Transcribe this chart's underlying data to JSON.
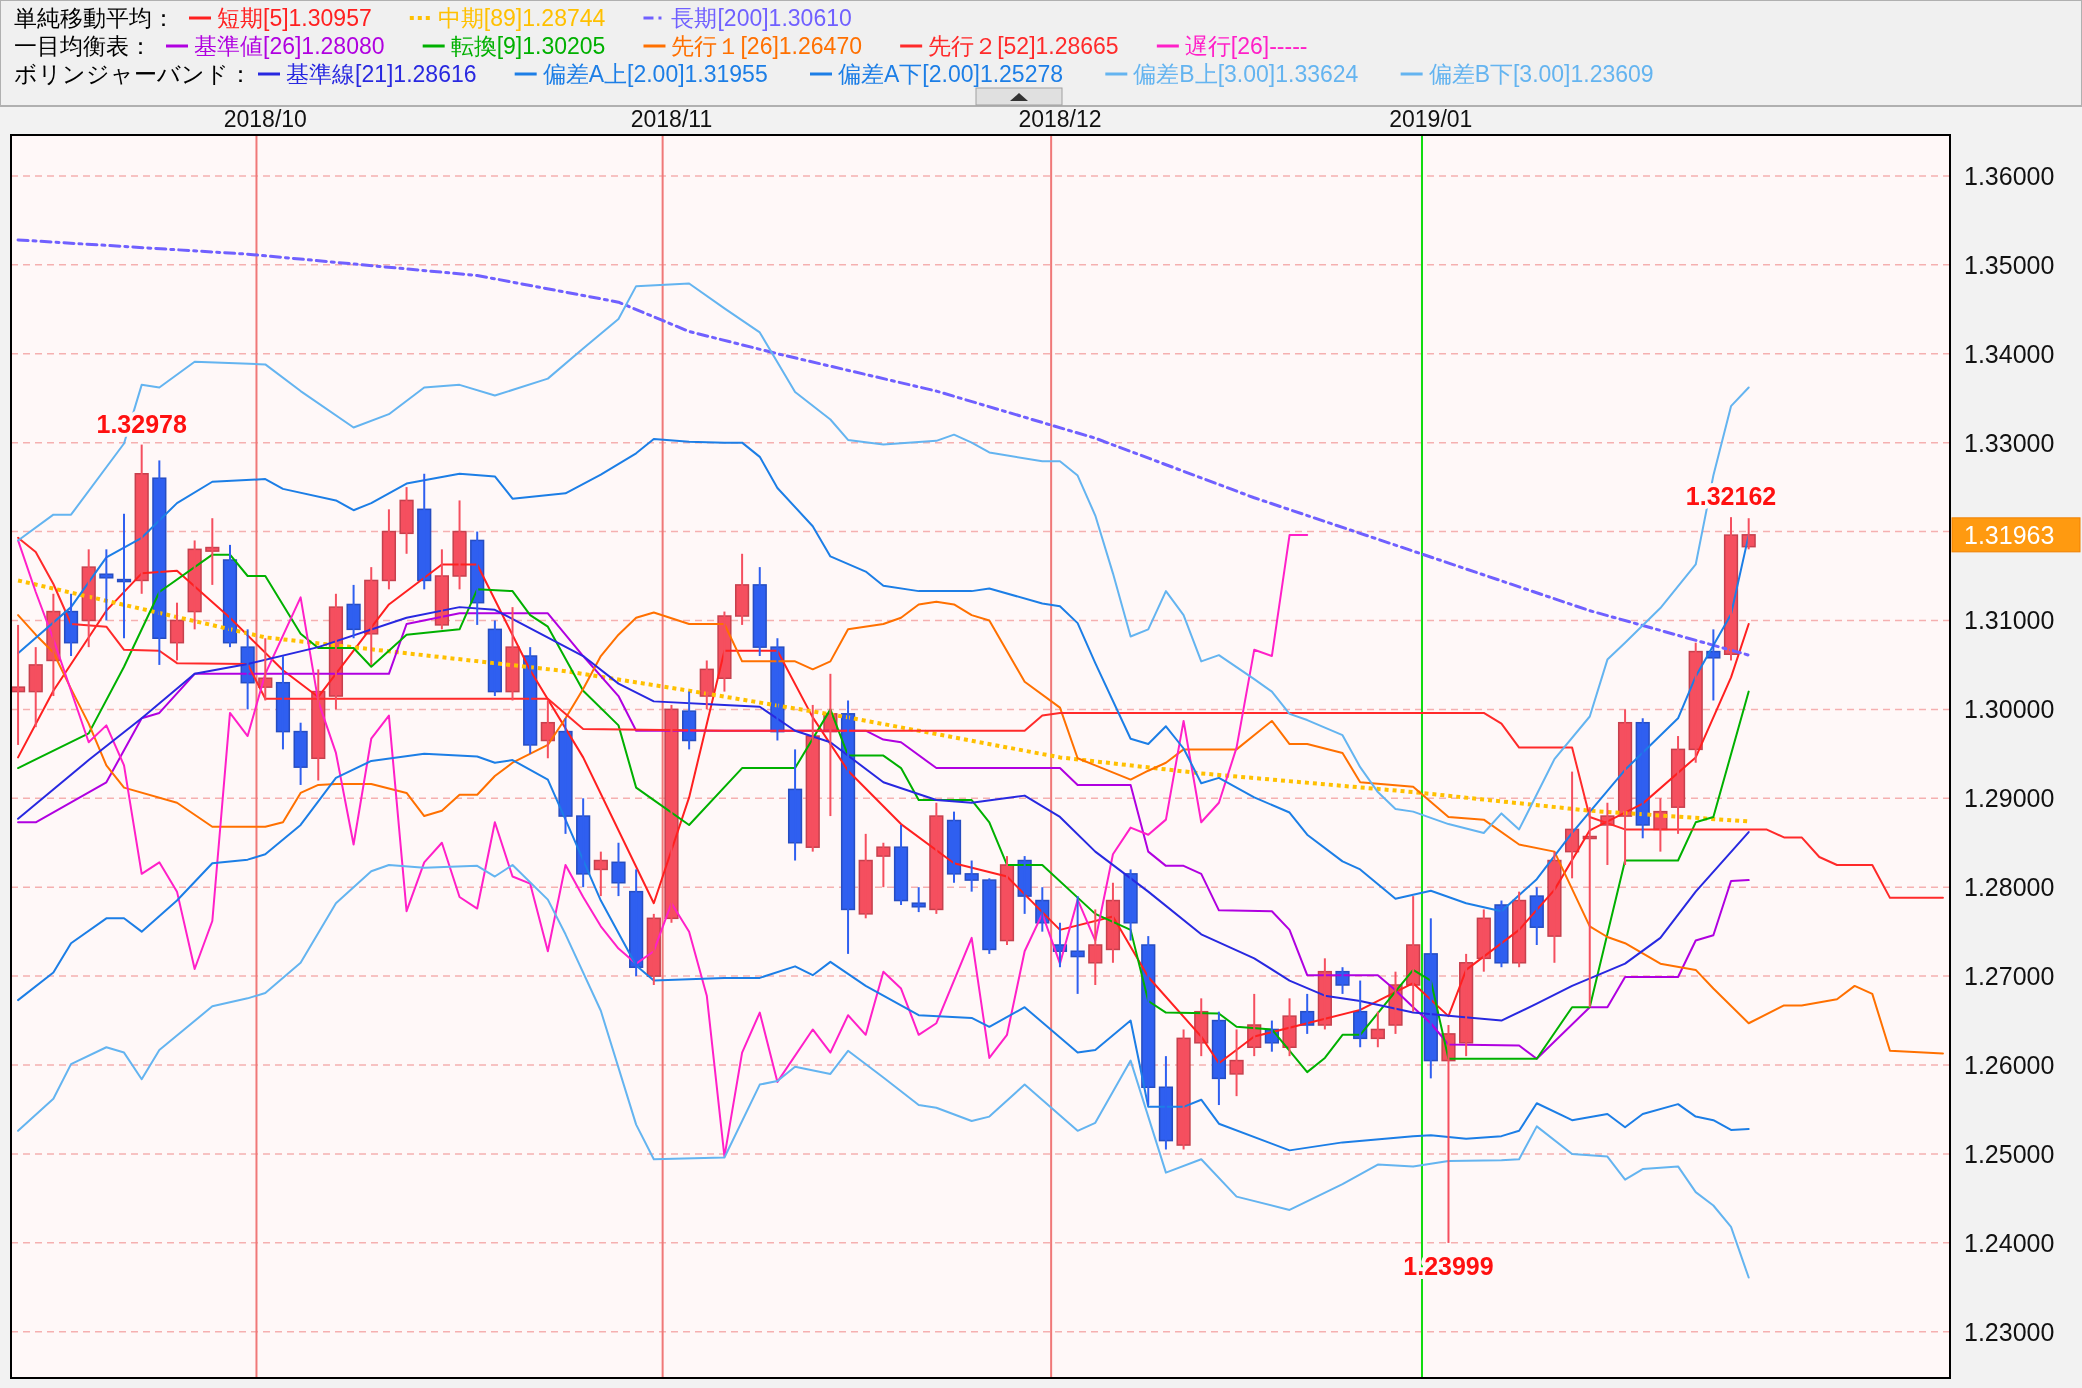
{
  "chart_data": {
    "type": "candlestick",
    "categories": [
      null,
      null,
      null,
      null,
      null,
      null,
      null,
      null,
      null,
      null,
      null,
      null,
      null,
      null,
      "2018/10",
      null,
      null,
      null,
      null,
      null,
      null,
      null,
      null,
      null,
      null,
      null,
      null,
      null,
      null,
      null,
      null,
      null,
      null,
      null,
      null,
      null,
      null,
      "2018/11",
      null,
      null,
      null,
      null,
      null,
      null,
      null,
      null,
      null,
      null,
      null,
      null,
      null,
      null,
      null,
      null,
      null,
      null,
      null,
      null,
      null,
      "2018/12",
      null,
      null,
      null,
      null,
      null,
      null,
      null,
      null,
      null,
      null,
      null,
      null,
      null,
      null,
      null,
      null,
      null,
      null,
      null,
      null,
      "2019/01",
      null,
      null,
      null,
      null,
      null,
      null,
      null,
      null,
      null,
      null,
      null,
      null,
      null,
      null,
      null,
      null,
      null,
      null,
      null,
      null,
      null,
      null,
      null,
      null,
      null,
      null,
      null,
      null,
      null
    ],
    "ohlc": [
      [
        1.302,
        1.3095,
        1.296,
        1.3025
      ],
      [
        1.302,
        1.307,
        1.298,
        1.305
      ],
      [
        1.3055,
        1.313,
        1.3015,
        1.311
      ],
      [
        1.311,
        1.313,
        1.306,
        1.3075
      ],
      [
        1.31,
        1.318,
        1.307,
        1.316
      ],
      [
        1.3152,
        1.318,
        1.31,
        1.3148
      ],
      [
        1.3146,
        1.322,
        1.308,
        1.3144
      ],
      [
        1.3145,
        1.32978,
        1.313,
        1.3265
      ],
      [
        1.326,
        1.328,
        1.305,
        1.308
      ],
      [
        1.3075,
        1.312,
        1.3055,
        1.31
      ],
      [
        1.311,
        1.319,
        1.309,
        1.318
      ],
      [
        1.3178,
        1.3215,
        1.314,
        1.3182
      ],
      [
        1.3168,
        1.3185,
        1.307,
        1.3075
      ],
      [
        1.307,
        1.309,
        1.3,
        1.303
      ],
      [
        1.3025,
        1.308,
        1.301,
        1.3035
      ],
      [
        1.303,
        1.306,
        1.2955,
        1.2975
      ],
      [
        1.2975,
        1.2985,
        1.2915,
        1.2935
      ],
      [
        1.2945,
        1.3045,
        1.292,
        1.302
      ],
      [
        1.3015,
        1.313,
        1.3,
        1.3115
      ],
      [
        1.3118,
        1.314,
        1.308,
        1.309
      ],
      [
        1.3085,
        1.316,
        1.305,
        1.3145
      ],
      [
        1.3145,
        1.3225,
        1.3135,
        1.32
      ],
      [
        1.3198,
        1.325,
        1.3175,
        1.3235
      ],
      [
        1.3225,
        1.3265,
        1.3135,
        1.3145
      ],
      [
        1.3095,
        1.318,
        1.309,
        1.315
      ],
      [
        1.315,
        1.3235,
        1.3135,
        1.32
      ],
      [
        1.319,
        1.32,
        1.3095,
        1.312
      ],
      [
        1.309,
        1.31,
        1.3015,
        1.302
      ],
      [
        1.302,
        1.3115,
        1.301,
        1.307
      ],
      [
        1.306,
        1.307,
        1.295,
        1.296
      ],
      [
        1.2965,
        1.301,
        1.2945,
        1.2985
      ],
      [
        1.2975,
        1.299,
        1.286,
        1.288
      ],
      [
        1.288,
        1.29,
        1.28,
        1.2815
      ],
      [
        1.282,
        1.284,
        1.279,
        1.283
      ],
      [
        1.2828,
        1.285,
        1.279,
        1.2805
      ],
      [
        1.2795,
        1.282,
        1.27,
        1.271
      ],
      [
        1.27,
        1.277,
        1.269,
        1.2765
      ],
      [
        1.2765,
        1.3005,
        1.276,
        1.3
      ],
      [
        1.2998,
        1.302,
        1.2955,
        1.2965
      ],
      [
        1.3015,
        1.3055,
        1.3,
        1.3045
      ],
      [
        1.3035,
        1.311,
        1.302,
        1.3105
      ],
      [
        1.3105,
        1.3175,
        1.3095,
        1.314
      ],
      [
        1.314,
        1.316,
        1.306,
        1.307
      ],
      [
        1.307,
        1.308,
        1.2965,
        1.2975
      ],
      [
        1.291,
        1.2955,
        1.283,
        1.285
      ],
      [
        1.2845,
        1.3005,
        1.284,
        1.297
      ],
      [
        1.2975,
        1.304,
        1.288,
        1.2995
      ],
      [
        1.2995,
        1.301,
        1.2725,
        1.2775
      ],
      [
        1.277,
        1.286,
        1.2765,
        1.283
      ],
      [
        1.2835,
        1.285,
        1.28,
        1.2845
      ],
      [
        1.2845,
        1.287,
        1.278,
        1.2785
      ],
      [
        1.2782,
        1.28,
        1.2772,
        1.2778
      ],
      [
        1.2775,
        1.2895,
        1.277,
        1.288
      ],
      [
        1.2875,
        1.2885,
        1.2805,
        1.2815
      ],
      [
        1.2815,
        1.283,
        1.2795,
        1.2808
      ],
      [
        1.2808,
        1.281,
        1.2725,
        1.273
      ],
      [
        1.274,
        1.2835,
        1.2735,
        1.2825
      ],
      [
        1.283,
        1.2835,
        1.277,
        1.279
      ],
      [
        1.2785,
        1.28,
        1.275,
        1.276
      ],
      [
        1.2735,
        1.276,
        1.271,
        1.2728
      ],
      [
        1.2728,
        1.279,
        1.268,
        1.2722
      ],
      [
        1.2715,
        1.2775,
        1.269,
        1.2735
      ],
      [
        1.273,
        1.2805,
        1.2715,
        1.2785
      ],
      [
        1.2815,
        1.282,
        1.274,
        1.276
      ],
      [
        1.2735,
        1.2745,
        1.2555,
        1.2575
      ],
      [
        1.2575,
        1.261,
        1.2505,
        1.2515
      ],
      [
        1.251,
        1.264,
        1.2505,
        1.263
      ],
      [
        1.2625,
        1.2675,
        1.261,
        1.266
      ],
      [
        1.265,
        1.266,
        1.2555,
        1.2585
      ],
      [
        1.259,
        1.264,
        1.2565,
        1.2605
      ],
      [
        1.262,
        1.268,
        1.261,
        1.2645
      ],
      [
        1.264,
        1.265,
        1.2615,
        1.2625
      ],
      [
        1.262,
        1.2675,
        1.261,
        1.2655
      ],
      [
        1.266,
        1.268,
        1.2635,
        1.2645
      ],
      [
        1.2645,
        1.272,
        1.264,
        1.2705
      ],
      [
        1.2705,
        1.271,
        1.268,
        1.269
      ],
      [
        1.266,
        1.2695,
        1.262,
        1.263
      ],
      [
        1.263,
        1.266,
        1.262,
        1.264
      ],
      [
        1.2645,
        1.2705,
        1.2635,
        1.269
      ],
      [
        1.269,
        1.279,
        1.266,
        1.2735
      ],
      [
        1.2725,
        1.2765,
        1.2585,
        1.2605
      ],
      [
        1.2605,
        1.2645,
        1.23999,
        1.2635
      ],
      [
        1.2625,
        1.2725,
        1.261,
        1.2715
      ],
      [
        1.272,
        1.2775,
        1.2705,
        1.2765
      ],
      [
        1.278,
        1.2785,
        1.271,
        1.2715
      ],
      [
        1.2715,
        1.2795,
        1.271,
        1.2785
      ],
      [
        1.279,
        1.28,
        1.2735,
        1.2755
      ],
      [
        1.2745,
        1.284,
        1.2715,
        1.283
      ],
      [
        1.284,
        1.293,
        1.281,
        1.2865
      ],
      [
        1.2855,
        1.289,
        1.2665,
        1.2857
      ],
      [
        1.287,
        1.2895,
        1.2825,
        1.288
      ],
      [
        1.288,
        1.3,
        1.2825,
        1.2985
      ],
      [
        1.2985,
        1.299,
        1.2855,
        1.287
      ],
      [
        1.2865,
        1.29,
        1.284,
        1.2885
      ],
      [
        1.289,
        1.297,
        1.286,
        1.2955
      ],
      [
        1.2955,
        1.3075,
        1.294,
        1.3065
      ],
      [
        1.3065,
        1.309,
        1.301,
        1.3058
      ],
      [
        1.3062,
        1.32162,
        1.3055,
        1.3196
      ],
      [
        1.3183,
        1.3215,
        1.318,
        1.31963
      ],
      null,
      null,
      null,
      null,
      null,
      null,
      null,
      null,
      null,
      null,
      null
    ],
    "colors": [
      "#f54f5f",
      "#f54f5f",
      "#f54f5f",
      "#2f5ff0",
      "#f54f5f",
      "#2f5ff0",
      "#2f5ff0",
      "#f54f5f",
      "#2f5ff0",
      "#f54f5f",
      "#f54f5f",
      "#f54f5f",
      "#2f5ff0",
      "#2f5ff0",
      "#f54f5f",
      "#2f5ff0",
      "#2f5ff0",
      "#f54f5f",
      "#f54f5f",
      "#2f5ff0",
      "#f54f5f",
      "#f54f5f",
      "#f54f5f",
      "#2f5ff0",
      "#f54f5f",
      "#f54f5f",
      "#2f5ff0",
      "#2f5ff0",
      "#f54f5f",
      "#2f5ff0",
      "#f54f5f",
      "#2f5ff0",
      "#2f5ff0",
      "#f54f5f",
      "#2f5ff0",
      "#2f5ff0",
      "#f54f5f",
      "#f54f5f",
      "#2f5ff0",
      "#f54f5f",
      "#f54f5f",
      "#f54f5f",
      "#2f5ff0",
      "#2f5ff0",
      "#2f5ff0",
      "#f54f5f",
      "#f54f5f",
      "#2f5ff0",
      "#f54f5f",
      "#f54f5f",
      "#2f5ff0",
      "#2f5ff0",
      "#f54f5f",
      "#2f5ff0",
      "#2f5ff0",
      "#2f5ff0",
      "#f54f5f",
      "#2f5ff0",
      "#2f5ff0",
      "#2f5ff0",
      "#2f5ff0",
      "#f54f5f",
      "#f54f5f",
      "#2f5ff0",
      "#2f5ff0",
      "#2f5ff0",
      "#f54f5f",
      "#f54f5f",
      "#2f5ff0",
      "#f54f5f",
      "#f54f5f",
      "#2f5ff0",
      "#f54f5f",
      "#2f5ff0",
      "#f54f5f",
      "#2f5ff0",
      "#2f5ff0",
      "#f54f5f",
      "#f54f5f",
      "#f54f5f",
      "#2f5ff0",
      "#f54f5f",
      "#f54f5f",
      "#f54f5f",
      "#2f5ff0",
      "#f54f5f",
      "#2f5ff0",
      "#f54f5f",
      "#f54f5f",
      "#f54f5f",
      "#f54f5f",
      "#f54f5f",
      "#2f5ff0",
      "#f54f5f",
      "#f54f5f",
      "#f54f5f",
      "#2f5ff0",
      "#f54f5f",
      "#f54f5f",
      null,
      null,
      null,
      null,
      null,
      null,
      null,
      null,
      null,
      null,
      null
    ],
    "series": [
      {
        "type": "line",
        "name": "短期[5]1.30957",
        "color": "#ff2020",
        "values": [
          1.2946,
          null,
          1.3021,
          null,
          null,
          1.3111,
          null,
          1.3153,
          null,
          1.3156,
          null,
          null,
          1.3103,
          null,
          null,
          1.3044,
          null,
          1.3014,
          null,
          null,
          null,
          1.3118,
          null,
          null,
          1.3163,
          null,
          1.3163,
          null,
          null,
          1.3044,
          null,
          null,
          1.2946,
          null,
          null,
          null,
          1.2782,
          null,
          1.2901,
          null,
          1.3066,
          null,
          null,
          1.3066,
          null,
          1.2991,
          null,
          1.2931,
          null,
          null,
          1.2871,
          null,
          null,
          1.2827,
          null,
          null,
          1.2812,
          null,
          null,
          1.2752,
          null,
          null,
          1.2767,
          null,
          1.2699,
          null,
          null,
          1.2632,
          1.2602,
          null,
          1.2632,
          null,
          null,
          1.2647,
          null,
          null,
          1.2662,
          null,
          null,
          1.2692,
          null,
          1.2655,
          1.2707,
          null,
          null,
          1.2752,
          null,
          1.2797,
          null,
          1.2864,
          null,
          null,
          1.2894,
          null,
          null,
          1.2946,
          null,
          1.3036,
          1.3096,
          null,
          null,
          null,
          null,
          null,
          null,
          null,
          null,
          null,
          null,
          null
        ]
      },
      {
        "type": "line",
        "name": "中期[89]1.28744",
        "color": "#ffc000",
        "line_style": "dotted",
        "values": [
          1.3145,
          null,
          null,
          null,
          null,
          null,
          null,
          null,
          null,
          null,
          null,
          null,
          null,
          null,
          1.3081,
          null,
          null,
          null,
          null,
          null,
          null,
          null,
          null,
          null,
          null,
          null,
          null,
          null,
          null,
          null,
          null,
          1.3043,
          null,
          null,
          null,
          null,
          null,
          null,
          1.3021,
          null,
          null,
          null,
          null,
          null,
          null,
          null,
          null,
          1.2991,
          null,
          null,
          null,
          null,
          null,
          null,
          null,
          null,
          null,
          null,
          null,
          1.2946,
          null,
          null,
          null,
          null,
          null,
          null,
          null,
          1.2928,
          null,
          null,
          null,
          null,
          null,
          null,
          null,
          null,
          null,
          null,
          null,
          1.2907,
          null,
          null,
          null,
          null,
          null,
          null,
          null,
          null,
          null,
          1.2886,
          null,
          null,
          null,
          null,
          null,
          null,
          null,
          null,
          1.2874,
          null,
          null,
          null,
          null,
          null,
          null,
          null,
          null,
          null,
          null,
          null
        ]
      },
      {
        "type": "line",
        "name": "長期[200]1.30610",
        "color": "#7060ff",
        "line_style": "dashed",
        "values": [
          1.3528,
          null,
          null,
          null,
          null,
          null,
          null,
          null,
          null,
          null,
          null,
          null,
          null,
          1.3512,
          null,
          null,
          null,
          null,
          null,
          null,
          null,
          null,
          null,
          null,
          null,
          null,
          1.3488,
          null,
          null,
          null,
          null,
          null,
          null,
          null,
          1.3458,
          null,
          null,
          null,
          1.3425,
          null,
          null,
          null,
          null,
          1.34,
          null,
          null,
          null,
          null,
          null,
          null,
          null,
          null,
          1.3358,
          null,
          null,
          null,
          null,
          null,
          null,
          null,
          null,
          1.3305,
          null,
          null,
          null,
          null,
          null,
          null,
          null,
          null,
          1.3238,
          null,
          null,
          null,
          null,
          null,
          null,
          null,
          null,
          1.3178,
          null,
          null,
          null,
          null,
          null,
          null,
          null,
          null,
          null,
          1.3111,
          null,
          null,
          null,
          null,
          null,
          null,
          null,
          null,
          1.3061,
          null,
          null,
          null,
          null,
          null,
          null,
          null,
          null,
          null,
          null,
          null
        ]
      },
      {
        "type": "line",
        "name": "基準値[26]1.28080",
        "color": "#b000e0",
        "values": [
          1.2873,
          1.2873,
          null,
          null,
          null,
          1.2918,
          null,
          1.299,
          1.2996,
          null,
          1.304,
          null,
          null,
          1.304,
          null,
          null,
          null,
          null,
          null,
          null,
          null,
          1.304,
          1.3096,
          null,
          null,
          1.3108,
          null,
          null,
          null,
          null,
          1.3108,
          null,
          1.306,
          null,
          1.3015,
          1.2976,
          null,
          null,
          null,
          null,
          1.2976,
          null,
          null,
          null,
          null,
          null,
          null,
          null,
          1.2976,
          1.2966,
          1.2963,
          null,
          1.2934,
          null,
          null,
          null,
          null,
          null,
          null,
          1.2934,
          1.2915,
          null,
          null,
          1.2915,
          1.284,
          1.2824,
          1.2824,
          1.2815,
          1.2774,
          null,
          null,
          1.2773,
          1.2752,
          1.2701,
          null,
          null,
          null,
          1.2701,
          1.2684,
          1.2665,
          1.2647,
          1.2623,
          null,
          null,
          null,
          1.2622,
          1.2607,
          null,
          null,
          1.2665,
          1.2665,
          1.2699,
          null,
          null,
          1.2699,
          1.274,
          1.2746,
          1.2807,
          1.2808,
          null,
          null,
          null,
          null,
          null,
          null,
          null,
          null,
          null,
          null,
          null
        ]
      },
      {
        "type": "line",
        "name": "転換[9]1.30205",
        "color": "#00b000",
        "values": [
          1.2934,
          null,
          null,
          null,
          1.2973,
          null,
          1.3048,
          null,
          1.3132,
          null,
          null,
          1.3174,
          1.3174,
          1.315,
          1.315,
          null,
          1.3085,
          1.3069,
          null,
          1.3069,
          1.3048,
          null,
          1.3084,
          null,
          null,
          1.309,
          1.3135,
          null,
          1.3133,
          1.3106,
          1.3093,
          null,
          1.3021,
          null,
          1.2982,
          1.2912,
          1.2898,
          null,
          1.287,
          null,
          null,
          1.2934,
          null,
          null,
          1.2934,
          null,
          1.3,
          1.2948,
          null,
          1.2948,
          1.2934,
          1.2898,
          null,
          null,
          1.2898,
          1.2873,
          1.2825,
          null,
          1.2825,
          null,
          null,
          1.277,
          null,
          1.2752,
          1.2672,
          1.2659,
          null,
          null,
          1.2658,
          1.2643,
          null,
          1.264,
          null,
          1.2592,
          1.2608,
          1.2634,
          1.2634,
          null,
          null,
          1.2707,
          1.2695,
          1.2607,
          null,
          null,
          null,
          null,
          1.2607,
          null,
          1.2665,
          1.2665,
          null,
          1.283,
          null,
          null,
          1.283,
          1.2873,
          1.2879,
          null,
          1.302,
          null,
          null,
          null,
          null,
          null,
          null,
          null,
          null,
          null,
          null,
          null
        ]
      },
      {
        "type": "line",
        "name": "先行１[26]1.26470",
        "color": "#ff7000",
        "values": [
          1.3106,
          1.3084,
          1.3064,
          1.3023,
          1.2984,
          1.2937,
          1.2912,
          null,
          null,
          1.2895,
          null,
          1.2868,
          null,
          null,
          1.2868,
          1.2873,
          1.2906,
          1.2915,
          1.2916,
          null,
          1.2916,
          null,
          1.2906,
          1.288,
          1.2886,
          1.2904,
          1.2904,
          1.2925,
          1.294,
          null,
          1.296,
          1.299,
          1.3023,
          1.306,
          1.3084,
          1.3103,
          1.3109,
          null,
          1.3096,
          null,
          1.3096,
          1.3054,
          null,
          null,
          1.3054,
          1.3045,
          1.3054,
          1.309,
          null,
          1.3096,
          1.3103,
          1.3118,
          1.3121,
          1.3118,
          1.3106,
          1.31,
          null,
          1.3031,
          null,
          1.3002,
          1.2945,
          1.2937,
          null,
          1.2921,
          1.2931,
          1.294,
          1.2955,
          null,
          null,
          1.2955,
          null,
          1.2987,
          1.2961,
          1.2961,
          null,
          1.2951,
          1.2918,
          null,
          null,
          1.2913,
          null,
          1.2879,
          null,
          1.2876,
          null,
          1.2848,
          null,
          1.284,
          null,
          1.2756,
          1.2744,
          1.2737,
          null,
          1.2714,
          null,
          1.2707,
          1.2686,
          null,
          1.2647,
          null,
          1.2667,
          1.2667,
          null,
          1.2674,
          1.2689,
          1.268,
          1.2616,
          null,
          null,
          1.2613
        ]
      },
      {
        "type": "line",
        "name": "先行２[52]1.28665",
        "color": "#ff2a2a",
        "values": [
          1.3193,
          1.3177,
          1.3141,
          1.3096,
          null,
          1.3093,
          1.3067,
          null,
          1.3066,
          1.3052,
          null,
          null,
          null,
          1.3051,
          1.3012,
          null,
          null,
          null,
          null,
          null,
          null,
          null,
          null,
          null,
          null,
          null,
          null,
          null,
          null,
          null,
          1.3012,
          null,
          1.2978,
          null,
          null,
          null,
          null,
          null,
          null,
          null,
          1.2976,
          null,
          null,
          null,
          null,
          null,
          null,
          null,
          null,
          null,
          null,
          null,
          null,
          null,
          null,
          null,
          null,
          1.2976,
          1.2993,
          1.2996,
          null,
          null,
          null,
          null,
          null,
          null,
          null,
          null,
          null,
          null,
          null,
          null,
          null,
          null,
          null,
          null,
          null,
          null,
          null,
          null,
          1.2996,
          null,
          null,
          1.2996,
          1.2984,
          1.2957,
          null,
          null,
          1.2957,
          1.2879,
          null,
          1.2865,
          null,
          null,
          null,
          null,
          null,
          null,
          null,
          1.2865,
          1.2856,
          1.2856,
          1.2834,
          1.2825,
          null,
          1.2825,
          1.2788,
          null,
          null,
          1.2788
        ]
      },
      {
        "type": "line",
        "name": "遅行[26]-----",
        "color": "#ff20c8",
        "values": [
          1.319,
          1.3132,
          1.3079,
          1.3021,
          1.2963,
          1.2982,
          1.2937,
          1.2815,
          1.2828,
          1.2795,
          1.2708,
          1.2762,
          1.2996,
          1.297,
          1.304,
          null,
          1.3126,
          1.3009,
          1.2951,
          1.2848,
          1.2967,
          1.2993,
          1.2773,
          1.2828,
          1.285,
          1.2789,
          1.2776,
          1.2873,
          1.2812,
          1.2804,
          1.2728,
          1.2825,
          1.2789,
          1.2756,
          1.2731,
          1.2714,
          1.2728,
          1.2782,
          1.275,
          1.2678,
          1.2497,
          1.2614,
          1.2659,
          1.2581,
          null,
          1.264,
          1.2614,
          1.2656,
          1.2634,
          1.2705,
          1.2686,
          1.2634,
          1.2647,
          null,
          1.2743,
          1.2608,
          1.2634,
          1.2728,
          1.277,
          1.2714,
          1.2786,
          1.274,
          1.2837,
          1.2867,
          1.2859,
          1.2876,
          1.2987,
          1.2873,
          1.2895,
          1.2957,
          1.3067,
          1.306,
          1.3196,
          1.3196,
          null,
          null,
          null,
          null,
          null,
          null,
          null,
          null,
          null,
          null,
          null,
          null,
          null,
          null,
          null,
          null,
          null,
          null,
          null,
          null,
          null,
          null,
          null,
          null,
          null,
          null,
          null,
          null,
          null,
          null,
          null,
          null,
          null,
          null,
          null,
          null
        ]
      },
      {
        "type": "line",
        "name": "基準線[21]1.28616",
        "color": "#2828e0",
        "values": [
          1.2877,
          null,
          null,
          null,
          1.2943,
          null,
          null,
          1.299,
          null,
          null,
          1.304,
          null,
          null,
          1.3051,
          null,
          null,
          null,
          1.307,
          null,
          null,
          null,
          null,
          1.3103,
          null,
          null,
          1.3115,
          null,
          1.3112,
          null,
          null,
          null,
          null,
          1.306,
          null,
          1.3029,
          null,
          1.3009,
          null,
          null,
          null,
          1.3005,
          null,
          1.3003,
          null,
          1.2976,
          null,
          1.2963,
          null,
          null,
          1.2918,
          null,
          null,
          1.2898,
          null,
          1.2895,
          null,
          null,
          1.2903,
          null,
          1.2879,
          null,
          1.284,
          null,
          null,
          1.2795,
          null,
          null,
          1.2747,
          null,
          null,
          1.272,
          null,
          1.2695,
          null,
          1.2678,
          null,
          1.2672,
          null,
          null,
          1.2659,
          null,
          null,
          null,
          null,
          1.265,
          null,
          1.2669,
          null,
          1.2689,
          null,
          null,
          1.2714,
          null,
          1.2743,
          null,
          1.2795,
          null,
          null,
          1.2862,
          null,
          null,
          null,
          null,
          null,
          null,
          null,
          null,
          null,
          null,
          null
        ]
      },
      {
        "type": "line",
        "name": "偏差A上[2.00]1.31955",
        "color": "#1c7ee6",
        "values": [
          1.3063,
          null,
          null,
          1.3115,
          null,
          1.3171,
          null,
          1.3193,
          null,
          1.3232,
          null,
          1.3256,
          null,
          null,
          1.3259,
          1.3248,
          null,
          null,
          1.3235,
          1.3224,
          1.3232,
          null,
          1.3254,
          null,
          null,
          1.3265,
          null,
          1.3262,
          1.3237,
          null,
          null,
          1.3243,
          null,
          1.3264,
          null,
          1.3288,
          1.3304,
          null,
          1.3301,
          null,
          1.33,
          1.33,
          1.3284,
          1.3249,
          null,
          1.3206,
          1.3172,
          null,
          1.3155,
          1.3139,
          null,
          1.3133,
          null,
          null,
          1.3133,
          1.3136,
          null,
          null,
          1.3119,
          1.3116,
          1.3097,
          1.3052,
          null,
          1.2967,
          1.2961,
          1.2981,
          1.2956,
          1.2917,
          1.2923,
          null,
          1.2901,
          null,
          1.2884,
          1.2859,
          null,
          1.2829,
          1.282,
          null,
          1.2787,
          null,
          1.2796,
          null,
          1.2782,
          null,
          1.2773,
          null,
          1.2809,
          null,
          1.2861,
          null,
          null,
          1.2932,
          null,
          null,
          1.299,
          1.3037,
          null,
          1.3107,
          1.3196,
          null,
          null,
          null,
          null,
          null,
          null,
          null,
          null,
          null,
          null,
          null
        ]
      },
      {
        "type": "line",
        "name": "偏差A下[2.00]1.25278",
        "color": "#1c7ee6",
        "values": [
          1.2673,
          null,
          1.2704,
          1.2737,
          null,
          1.2765,
          1.2765,
          1.275,
          null,
          1.2785,
          null,
          1.2827,
          null,
          1.2831,
          1.2837,
          null,
          1.287,
          null,
          1.2923,
          null,
          1.2942,
          null,
          null,
          1.295,
          null,
          null,
          1.2947,
          1.294,
          1.2943,
          null,
          1.2921,
          1.2876,
          null,
          1.2785,
          null,
          1.2712,
          1.2695,
          null,
          null,
          null,
          1.2698,
          null,
          1.2698,
          null,
          1.2711,
          1.2701,
          1.2716,
          null,
          1.2689,
          null,
          null,
          1.2656,
          null,
          null,
          1.2653,
          1.2643,
          null,
          1.2665,
          null,
          null,
          1.2614,
          1.2617,
          null,
          1.265,
          1.2553,
          null,
          1.2553,
          1.2561,
          1.2534,
          null,
          null,
          null,
          1.2504,
          null,
          null,
          1.2513,
          null,
          null,
          null,
          1.252,
          1.2521,
          null,
          1.2517,
          null,
          1.252,
          1.2526,
          1.2557,
          null,
          1.2538,
          null,
          1.2545,
          1.253,
          1.2545,
          null,
          1.2556,
          1.2542,
          1.2538,
          1.2527,
          1.2528,
          null,
          null,
          null,
          null,
          null,
          null,
          null,
          null,
          null,
          null,
          null
        ]
      },
      {
        "type": "line",
        "name": "偏差B上[3.00]1.33624",
        "color": "#64b4f0",
        "values": [
          1.319,
          null,
          1.3219,
          1.3219,
          null,
          null,
          1.3299,
          1.3365,
          1.3362,
          null,
          1.3391,
          null,
          null,
          null,
          1.3388,
          null,
          1.3358,
          null,
          null,
          1.3317,
          null,
          1.3332,
          null,
          1.3362,
          null,
          1.3365,
          null,
          1.3353,
          null,
          null,
          1.3372,
          null,
          1.3406,
          null,
          1.3439,
          1.3476,
          null,
          null,
          1.3479,
          null,
          1.3451,
          null,
          1.3424,
          null,
          1.3357,
          null,
          1.3326,
          1.3303,
          null,
          1.3298,
          null,
          null,
          1.3302,
          1.3309,
          1.33,
          1.3289,
          null,
          null,
          1.3279,
          1.3279,
          1.3263,
          1.3218,
          1.3153,
          1.3082,
          1.309,
          1.3133,
          1.3106,
          1.3054,
          1.3061,
          null,
          1.3034,
          1.302,
          1.2995,
          1.2988,
          null,
          1.2971,
          1.2935,
          1.2907,
          1.2888,
          1.2885,
          null,
          1.2871,
          null,
          1.2861,
          1.2883,
          1.2865,
          null,
          1.2944,
          null,
          1.2992,
          1.3056,
          1.3075,
          null,
          1.3114,
          null,
          1.3163,
          1.3263,
          1.3341,
          1.3362,
          null,
          null,
          null,
          null,
          null,
          null,
          null,
          null,
          null,
          null,
          null
        ]
      },
      {
        "type": "line",
        "name": "偏差B下[3.00]1.23609",
        "color": "#64b4f0",
        "values": [
          1.2526,
          null,
          1.2562,
          1.2601,
          null,
          1.262,
          1.2614,
          1.2584,
          1.2617,
          null,
          null,
          1.2666,
          null,
          1.2675,
          1.2681,
          null,
          1.2715,
          null,
          1.2782,
          null,
          1.2818,
          1.2825,
          null,
          1.2822,
          null,
          null,
          1.2824,
          1.2812,
          1.2825,
          null,
          1.2786,
          1.2747,
          null,
          1.2661,
          null,
          1.2533,
          1.2494,
          null,
          null,
          null,
          1.2496,
          null,
          1.2578,
          1.2582,
          1.2598,
          null,
          1.259,
          1.2616,
          null,
          1.2586,
          null,
          1.2555,
          1.2552,
          null,
          1.2537,
          1.2542,
          null,
          1.2578,
          null,
          null,
          1.2526,
          1.2535,
          null,
          1.2605,
          null,
          1.2479,
          null,
          1.2494,
          null,
          1.2452,
          null,
          null,
          1.2437,
          null,
          null,
          1.2466,
          null,
          1.2488,
          null,
          1.2486,
          null,
          1.2492,
          null,
          null,
          1.2493,
          1.2494,
          1.2531,
          null,
          1.25,
          null,
          1.2497,
          1.2471,
          1.2483,
          null,
          1.2486,
          1.2457,
          1.2442,
          1.2418,
          1.2361,
          null,
          null,
          null,
          null,
          null,
          null,
          null,
          null,
          null,
          null,
          null
        ]
      }
    ],
    "ylim": [
      1.2248,
      1.3646
    ],
    "yticks": [
      {
        "value": 1.23,
        "label": "1.23000"
      },
      {
        "value": 1.24,
        "label": "1.24000"
      },
      {
        "value": 1.25,
        "label": "1.25000"
      },
      {
        "value": 1.26,
        "label": "1.26000"
      },
      {
        "value": 1.27,
        "label": "1.27000"
      },
      {
        "value": 1.28,
        "label": "1.28000"
      },
      {
        "value": 1.29,
        "label": "1.29000"
      },
      {
        "value": 1.3,
        "label": "1.30000"
      },
      {
        "value": 1.31,
        "label": "1.31000"
      },
      {
        "value": 1.32,
        "label": null
      },
      {
        "value": 1.33,
        "label": "1.33000"
      },
      {
        "value": 1.34,
        "label": "1.34000"
      },
      {
        "value": 1.35,
        "label": "1.35000"
      },
      {
        "value": 1.36,
        "label": "1.36000"
      }
    ],
    "grid": true,
    "legend": "top",
    "ref_lines": [
      {
        "axis": "x",
        "value": "2019/01",
        "color": "#10dd10"
      }
    ],
    "annotations": [
      "単純移動平均：",
      "一目均衡表：",
      "ボリンジャーバンド：",
      "1.31963",
      {
        "text": "1.32978",
        "y": 1.32978
      },
      {
        "text": "1.32162",
        "y": 1.32162
      },
      {
        "text": "1.23999",
        "y": 1.23999
      }
    ]
  }
}
